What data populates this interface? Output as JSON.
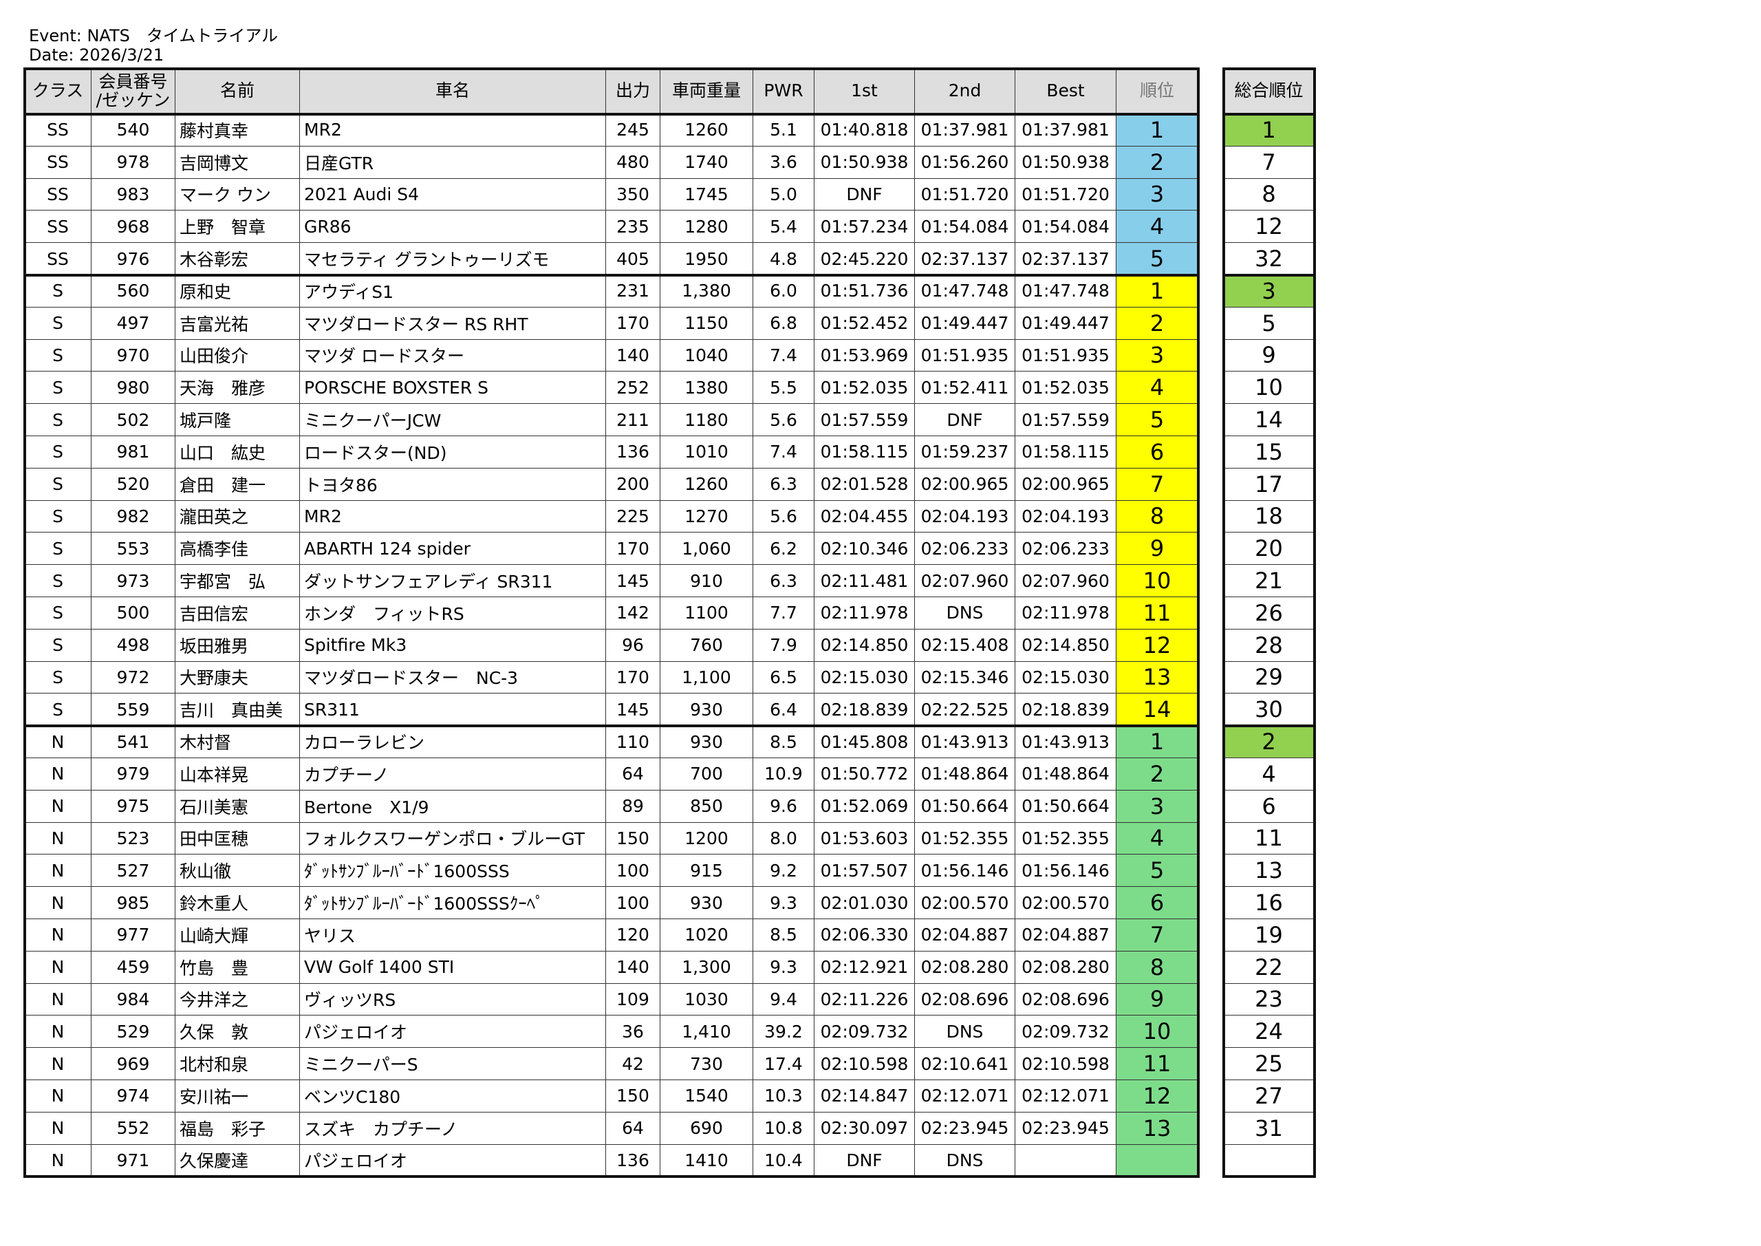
{
  "header": {
    "event": "Event: NATS　タイムトライアル",
    "date": "Date: 2026/3/21"
  },
  "table": {
    "columns": [
      "クラス",
      [
        "会員番号",
        "/ゼッケン"
      ],
      "名前",
      "車名",
      "出力",
      "車両重量",
      "PWR",
      "1st",
      "2nd",
      "Best",
      "順位"
    ],
    "rows": [
      [
        "SS",
        "540",
        "藤村真幸",
        "MR2",
        "245",
        "1260",
        "5.1",
        "01:40.818",
        "01:37.981",
        "01:37.981",
        "1"
      ],
      [
        "SS",
        "978",
        "吉岡博文",
        "日産GTR",
        "480",
        "1740",
        "3.6",
        "01:50.938",
        "01:56.260",
        "01:50.938",
        "2"
      ],
      [
        "SS",
        "983",
        "マーク ウン",
        "2021 Audi S4",
        "350",
        "1745",
        "5.0",
        "DNF",
        "01:51.720",
        "01:51.720",
        "3"
      ],
      [
        "SS",
        "968",
        "上野　智章",
        "GR86",
        "235",
        "1280",
        "5.4",
        "01:57.234",
        "01:54.084",
        "01:54.084",
        "4"
      ],
      [
        "SS",
        "976",
        "木谷彰宏",
        "マセラティ グラントゥーリズモ",
        "405",
        "1950",
        "4.8",
        "02:45.220",
        "02:37.137",
        "02:37.137",
        "5"
      ],
      [
        "S",
        "560",
        "原和史",
        "アウディS1",
        "231",
        "1,380",
        "6.0",
        "01:51.736",
        "01:47.748",
        "01:47.748",
        "1"
      ],
      [
        "S",
        "497",
        "吉富光祐",
        "マツダロードスター RS RHT",
        "170",
        "1150",
        "6.8",
        "01:52.452",
        "01:49.447",
        "01:49.447",
        "2"
      ],
      [
        "S",
        "970",
        "山田俊介",
        "マツダ ロードスター",
        "140",
        "1040",
        "7.4",
        "01:53.969",
        "01:51.935",
        "01:51.935",
        "3"
      ],
      [
        "S",
        "980",
        "天海　雅彦",
        "PORSCHE BOXSTER S",
        "252",
        "1380",
        "5.5",
        "01:52.035",
        "01:52.411",
        "01:52.035",
        "4"
      ],
      [
        "S",
        "502",
        "城戸隆",
        "ミニクーパーJCW",
        "211",
        "1180",
        "5.6",
        "01:57.559",
        "DNF",
        "01:57.559",
        "5"
      ],
      [
        "S",
        "981",
        "山口　紘史",
        "ロードスター(ND)",
        "136",
        "1010",
        "7.4",
        "01:58.115",
        "01:59.237",
        "01:58.115",
        "6"
      ],
      [
        "S",
        "520",
        "倉田　建一",
        "トヨタ86",
        "200",
        "1260",
        "6.3",
        "02:01.528",
        "02:00.965",
        "02:00.965",
        "7"
      ],
      [
        "S",
        "982",
        "瀧田英之",
        "MR2",
        "225",
        "1270",
        "5.6",
        "02:04.455",
        "02:04.193",
        "02:04.193",
        "8"
      ],
      [
        "S",
        "553",
        "高橋李佳",
        "ABARTH 124 spider",
        "170",
        "1,060",
        "6.2",
        "02:10.346",
        "02:06.233",
        "02:06.233",
        "9"
      ],
      [
        "S",
        "973",
        "宇都宮　弘",
        "ダットサンフェアレディ SR311",
        "145",
        "910",
        "6.3",
        "02:11.481",
        "02:07.960",
        "02:07.960",
        "10"
      ],
      [
        "S",
        "500",
        "吉田信宏",
        "ホンダ　フィットRS",
        "142",
        "1100",
        "7.7",
        "02:11.978",
        "DNS",
        "02:11.978",
        "11"
      ],
      [
        "S",
        "498",
        "坂田雅男",
        "Spitfire Mk3",
        "96",
        "760",
        "7.9",
        "02:14.850",
        "02:15.408",
        "02:14.850",
        "12"
      ],
      [
        "S",
        "972",
        "大野康夫",
        "マツダロードスター　NC-3",
        "170",
        "1,100",
        "6.5",
        "02:15.030",
        "02:15.346",
        "02:15.030",
        "13"
      ],
      [
        "S",
        "559",
        "吉川　真由美",
        "SR311",
        "145",
        "930",
        "6.4",
        "02:18.839",
        "02:22.525",
        "02:18.839",
        "14"
      ],
      [
        "N",
        "541",
        "木村督",
        "カローラレビン",
        "110",
        "930",
        "8.5",
        "01:45.808",
        "01:43.913",
        "01:43.913",
        "1"
      ],
      [
        "N",
        "979",
        "山本祥晃",
        "カプチーノ",
        "64",
        "700",
        "10.9",
        "01:50.772",
        "01:48.864",
        "01:48.864",
        "2"
      ],
      [
        "N",
        "975",
        "石川美憲",
        "Bertone　X1/9",
        "89",
        "850",
        "9.6",
        "01:52.069",
        "01:50.664",
        "01:50.664",
        "3"
      ],
      [
        "N",
        "523",
        "田中匡穂",
        "フォルクスワーゲンポロ・ブルーGT",
        "150",
        "1200",
        "8.0",
        "01:53.603",
        "01:52.355",
        "01:52.355",
        "4"
      ],
      [
        "N",
        "527",
        "秋山徹",
        "ﾀﾞｯﾄｻﾝﾌﾞﾙｰﾊﾞｰﾄﾞ1600SSS",
        "100",
        "915",
        "9.2",
        "01:57.507",
        "01:56.146",
        "01:56.146",
        "5"
      ],
      [
        "N",
        "985",
        "鈴木重人",
        "ﾀﾞｯﾄｻﾝﾌﾞﾙｰﾊﾞｰﾄﾞ1600SSSｸｰﾍﾟ",
        "100",
        "930",
        "9.3",
        "02:01.030",
        "02:00.570",
        "02:00.570",
        "6"
      ],
      [
        "N",
        "977",
        "山崎大輝",
        "ヤリス",
        "120",
        "1020",
        "8.5",
        "02:06.330",
        "02:04.887",
        "02:04.887",
        "7"
      ],
      [
        "N",
        "459",
        "竹島　豊",
        "VW Golf 1400 STI",
        "140",
        "1,300",
        "9.3",
        "02:12.921",
        "02:08.280",
        "02:08.280",
        "8"
      ],
      [
        "N",
        "984",
        "今井洋之",
        "ヴィッツRS",
        "109",
        "1030",
        "9.4",
        "02:11.226",
        "02:08.696",
        "02:08.696",
        "9"
      ],
      [
        "N",
        "529",
        "久保　敦",
        "パジェロイオ",
        "36",
        "1,410",
        "39.2",
        "02:09.732",
        "DNS",
        "02:09.732",
        "10"
      ],
      [
        "N",
        "969",
        "北村和泉",
        "ミニクーパーS",
        "42",
        "730",
        "17.4",
        "02:10.598",
        "02:10.641",
        "02:10.598",
        "11"
      ],
      [
        "N",
        "974",
        "安川祐一",
        "ベンツC180",
        "150",
        "1540",
        "10.3",
        "02:14.847",
        "02:12.071",
        "02:12.071",
        "12"
      ],
      [
        "N",
        "552",
        "福島　彩子",
        "スズキ　カプチーノ",
        "64",
        "690",
        "10.8",
        "02:30.097",
        "02:23.945",
        "02:23.945",
        "13"
      ],
      [
        "N",
        "971",
        "久保慶達",
        "パジェロイオ",
        "136",
        "1410",
        "10.4",
        "DNF",
        "DNS",
        null,
        null
      ]
    ]
  },
  "overall": {
    "header": "総合順位",
    "values": [
      "1",
      "7",
      "8",
      "12",
      "32",
      "3",
      "5",
      "9",
      "10",
      "14",
      "15",
      "17",
      "18",
      "20",
      "21",
      "26",
      "28",
      "29",
      "30",
      "2",
      "4",
      "6",
      "11",
      "13",
      "16",
      "19",
      "22",
      "23",
      "24",
      "25",
      "27",
      "31",
      null
    ]
  }
}
